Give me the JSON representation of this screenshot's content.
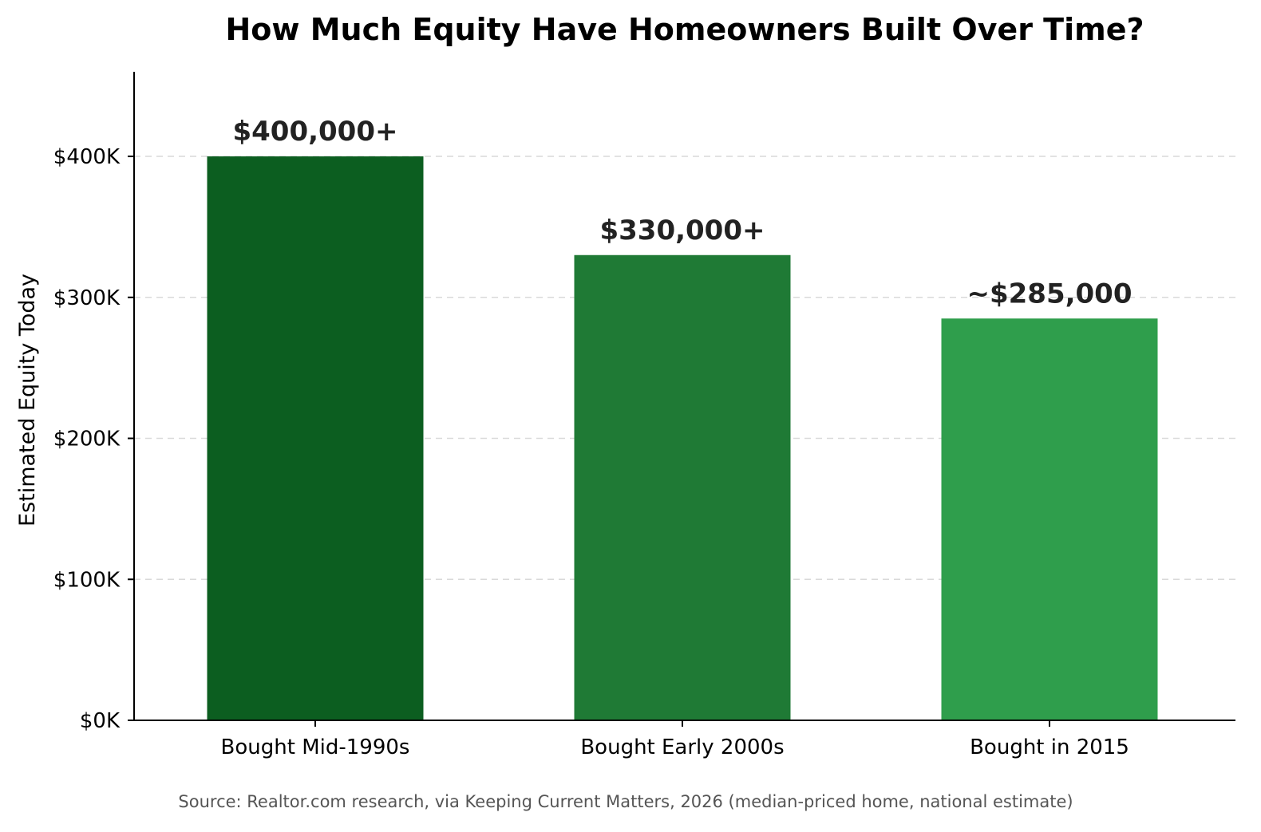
{
  "chart_data": {
    "type": "bar",
    "title": "How Much Equity Have Homeowners Built Over Time?",
    "xlabel": "",
    "ylabel": "Estimated Equity Today",
    "categories": [
      "Bought Mid-1990s",
      "Bought Early 2000s",
      "Bought in 2015"
    ],
    "values": [
      400000,
      330000,
      285000
    ],
    "data_labels": [
      "$400,000+",
      "$330,000+",
      "~$285,000"
    ],
    "bar_colors": [
      "#0c5e20",
      "#1f7a35",
      "#2f9e4c"
    ],
    "ylim": [
      0,
      460000
    ],
    "yticks": [
      0,
      100000,
      200000,
      300000,
      400000
    ],
    "ytick_labels": [
      "$0K",
      "$100K",
      "$200K",
      "$300K",
      "$400K"
    ],
    "grid": "horizontal dashed",
    "legend": "none",
    "source": "Source: Realtor.com research, via Keeping Current Matters, 2026 (median-priced home, national estimate)"
  }
}
